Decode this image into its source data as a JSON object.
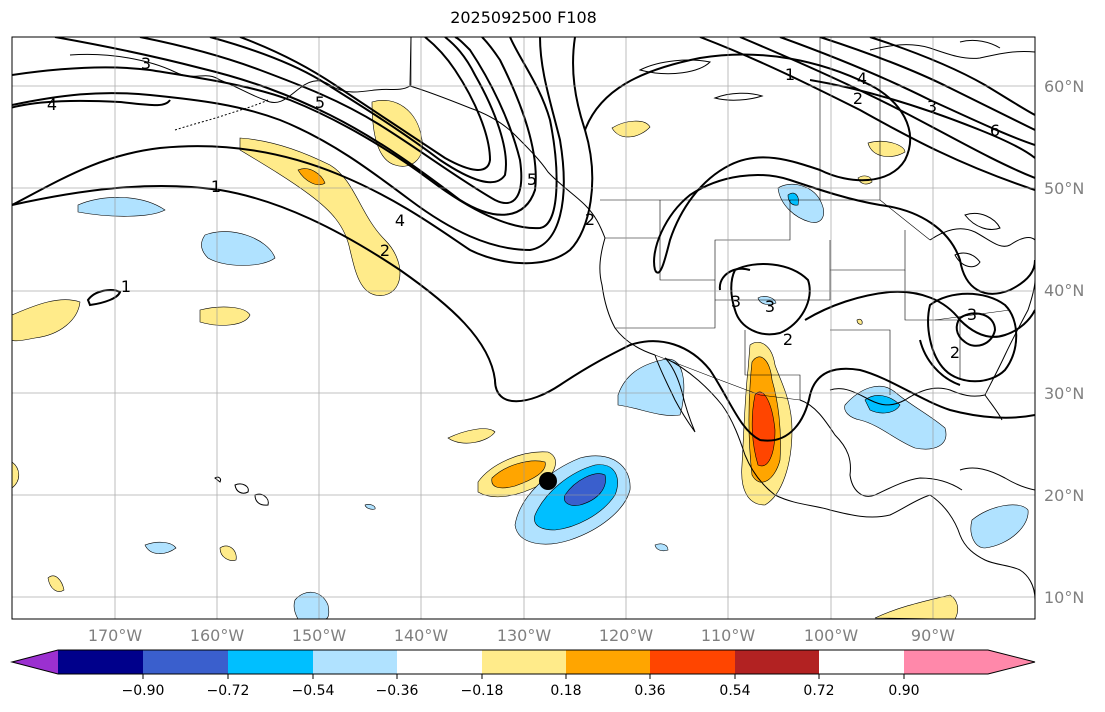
{
  "title": "2025092500 F108",
  "lat_labels": [
    "60°N",
    "50°N",
    "40°N",
    "30°N",
    "20°N",
    "10°N"
  ],
  "lon_labels": [
    "170°W",
    "160°W",
    "150°W",
    "140°W",
    "130°W",
    "120°W",
    "110°W",
    "100°W",
    "90°W"
  ],
  "contour_labels": [
    "3",
    "4",
    "5",
    "1",
    "2",
    "4",
    "1",
    "2",
    "1",
    "4",
    "2",
    "3",
    "5",
    "6",
    "2",
    "3",
    "3",
    "3",
    "2"
  ],
  "colorbar": {
    "ticks": [
      "−0.90",
      "−0.72",
      "−0.54",
      "−0.36",
      "−0.18",
      "0.18",
      "0.36",
      "0.54",
      "0.72",
      "0.90"
    ],
    "colors": [
      "#9b30d0",
      "#00008b",
      "#3a5fcd",
      "#00bfff",
      "#b0e2ff",
      "#ffffff",
      "#ffeb8a",
      "#ffa500",
      "#ff4500",
      "#b22222",
      "#ff88aa"
    ]
  },
  "marker": {
    "label": "storm-position",
    "lon": -128.9,
    "lat": 21.5
  }
}
